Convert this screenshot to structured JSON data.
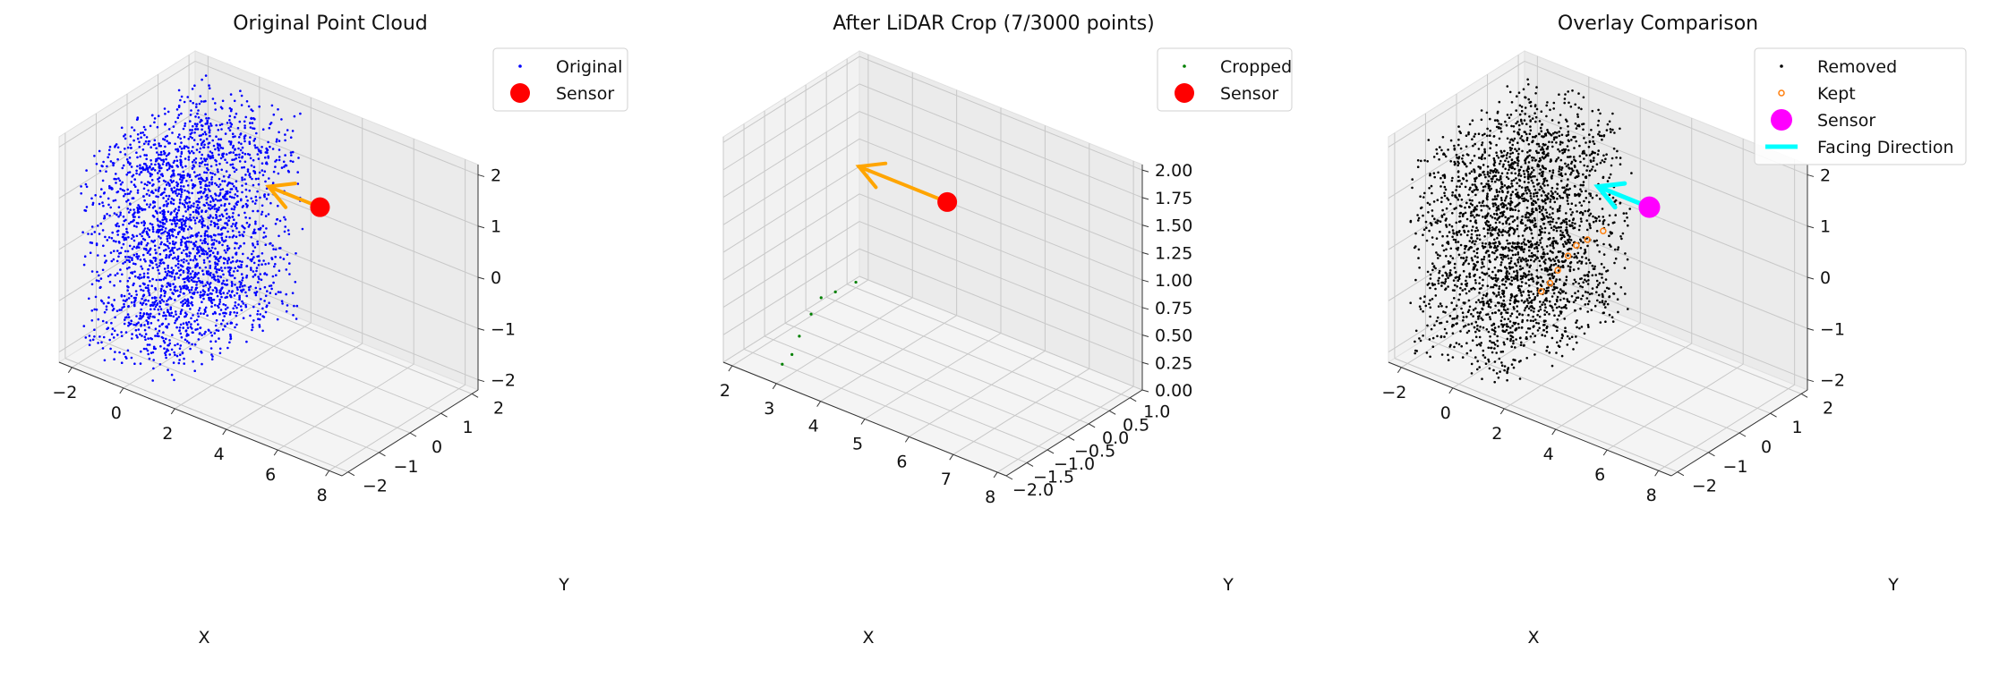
{
  "chart_data": [
    {
      "type": "scatter",
      "projection": "3d",
      "title": "Original Point Cloud",
      "xlabel": "X",
      "ylabel": "Y",
      "zlabel": "",
      "xlim": [
        -2.5,
        8.5
      ],
      "ylim": [
        -2.2,
        2.2
      ],
      "zlim": [
        -2.2,
        2.2
      ],
      "xticks": [
        -2,
        0,
        2,
        4,
        6,
        8
      ],
      "yticks": [
        -2,
        -1,
        0,
        1,
        2
      ],
      "zticks": [
        -2,
        -1,
        0,
        1,
        2
      ],
      "xtick_labels": [
        "−2",
        "0",
        "2",
        "4",
        "6",
        "8"
      ],
      "ytick_labels": [
        "−2",
        "−1",
        "0",
        "1",
        "2"
      ],
      "ztick_labels": [
        "−2",
        "−1",
        "0",
        "1",
        "2"
      ],
      "grid": true,
      "legend_position": "top-right",
      "series": [
        {
          "name": "Original",
          "kind": "points",
          "color": "#0000ff",
          "marker": "dot",
          "count": 3000,
          "distribution": "uniform box",
          "x_range": [
            -2,
            2
          ],
          "y_range": [
            -2,
            2
          ],
          "z_range": [
            -2,
            2
          ]
        },
        {
          "name": "Sensor",
          "kind": "point",
          "color": "#ff0000",
          "marker": "circle",
          "x": 5,
          "y": 0,
          "z": 1.5
        }
      ],
      "arrows": [
        {
          "from": [
            5,
            0,
            1.5
          ],
          "to": [
            3,
            0,
            1.5
          ],
          "color": "#ffa500"
        }
      ]
    },
    {
      "type": "scatter",
      "projection": "3d",
      "title": "After LiDAR Crop (7/3000 points)",
      "xlabel": "X",
      "ylabel": "Y",
      "zlabel": "",
      "xlim": [
        1.8,
        8.2
      ],
      "ylim": [
        -2.0,
        1.3
      ],
      "zlim": [
        0,
        2.05
      ],
      "xticks": [
        2,
        3,
        4,
        5,
        6,
        7,
        8
      ],
      "yticks": [
        -2.0,
        -1.5,
        -1.0,
        -0.5,
        0.0,
        0.5,
        1.0
      ],
      "zticks": [
        0.0,
        0.25,
        0.5,
        0.75,
        1.0,
        1.25,
        1.5,
        1.75,
        2.0
      ],
      "xtick_labels": [
        "2",
        "3",
        "4",
        "5",
        "6",
        "7",
        "8"
      ],
      "ytick_labels": [
        "−2.0",
        "−1.5",
        "−1.0",
        "−0.5",
        "0.0",
        "0.5",
        "1.0"
      ],
      "ztick_labels": [
        "0.00",
        "0.25",
        "0.50",
        "0.75",
        "1.00",
        "1.25",
        "1.50",
        "1.75",
        "2.00"
      ],
      "grid": true,
      "legend_position": "top-right",
      "series": [
        {
          "name": "Cropped",
          "kind": "points",
          "color": "#008000",
          "marker": "dot",
          "count": 7,
          "points": [
            [
              2.0,
              1.0,
              0.05
            ],
            [
              2.05,
              0.45,
              0.1
            ],
            [
              2.1,
              0.05,
              0.15
            ],
            [
              2.2,
              -0.3,
              0.1
            ],
            [
              2.4,
              -0.8,
              0.05
            ],
            [
              2.7,
              -1.3,
              0.05
            ],
            [
              2.9,
              -1.75,
              0.1
            ]
          ]
        },
        {
          "name": "Sensor",
          "kind": "point",
          "color": "#ff0000",
          "marker": "circle",
          "x": 5,
          "y": 0,
          "z": 1.5
        }
      ],
      "arrows": [
        {
          "from": [
            5,
            0,
            1.5
          ],
          "to": [
            3,
            0,
            1.5
          ],
          "color": "#ffa500"
        }
      ]
    },
    {
      "type": "scatter",
      "projection": "3d",
      "title": "Overlay Comparison",
      "xlabel": "X",
      "ylabel": "Y",
      "zlabel": "",
      "xlim": [
        -2.5,
        8.5
      ],
      "ylim": [
        -2.2,
        2.2
      ],
      "zlim": [
        -2.2,
        2.2
      ],
      "xticks": [
        -2,
        0,
        2,
        4,
        6,
        8
      ],
      "yticks": [
        -2,
        -1,
        0,
        1,
        2
      ],
      "zticks": [
        -2,
        -1,
        0,
        1,
        2
      ],
      "xtick_labels": [
        "−2",
        "0",
        "2",
        "4",
        "6",
        "8"
      ],
      "ytick_labels": [
        "−2",
        "−1",
        "0",
        "1",
        "2"
      ],
      "ztick_labels": [
        "−2",
        "−1",
        "0",
        "1",
        "2"
      ],
      "grid": true,
      "legend_position": "top-right",
      "series": [
        {
          "name": "Removed",
          "kind": "points",
          "color": "#000000",
          "marker": "dot",
          "count": 2993,
          "distribution": "uniform box",
          "x_range": [
            -2,
            2
          ],
          "y_range": [
            -2,
            2
          ],
          "z_range": [
            -2,
            2
          ]
        },
        {
          "name": "Kept",
          "kind": "points",
          "color": "#ff7f0e",
          "marker": "hollow-circle",
          "count": 7,
          "points": [
            [
              2.0,
              1.0,
              0.05
            ],
            [
              2.05,
              0.45,
              0.1
            ],
            [
              2.1,
              0.05,
              0.15
            ],
            [
              2.2,
              -0.3,
              0.1
            ],
            [
              2.4,
              -0.8,
              0.05
            ],
            [
              2.7,
              -1.3,
              0.05
            ],
            [
              2.9,
              -1.75,
              0.1
            ]
          ]
        },
        {
          "name": "Sensor",
          "kind": "point",
          "color": "#ff00ff",
          "marker": "circle",
          "x": 5,
          "y": 0,
          "z": 1.5
        },
        {
          "name": "Facing Direction",
          "kind": "arrow",
          "color": "#00ffff",
          "from": [
            5,
            0,
            1.5
          ],
          "to": [
            3,
            0,
            1.5
          ]
        }
      ],
      "arrows": []
    }
  ]
}
